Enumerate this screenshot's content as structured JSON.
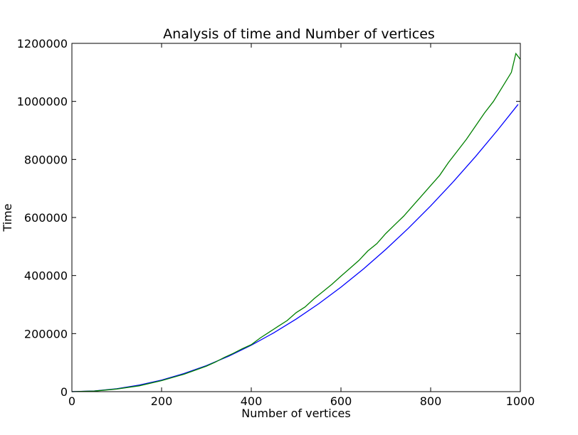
{
  "chart_data": {
    "type": "line",
    "title": "Analysis of time and Number of vertices",
    "xlabel": "Number of vertices",
    "ylabel": "Time",
    "xlim": [
      0,
      1000
    ],
    "ylim": [
      0,
      1200000
    ],
    "grid": false,
    "x_ticks": [
      "0",
      "200",
      "400",
      "600",
      "800",
      "1000"
    ],
    "y_ticks": [
      "0",
      "200000",
      "400000",
      "600000",
      "800000",
      "1000000",
      "1200000"
    ],
    "series": [
      {
        "color": "#0000ff",
        "x": [
          0,
          50,
          100,
          150,
          200,
          250,
          300,
          350,
          400,
          450,
          500,
          550,
          600,
          650,
          700,
          750,
          800,
          850,
          900,
          950,
          995
        ],
        "y": [
          0,
          2500,
          10000,
          22500,
          40000,
          62500,
          90000,
          122500,
          160000,
          202500,
          250000,
          302500,
          360000,
          422500,
          490000,
          562500,
          640000,
          722500,
          810000,
          902500,
          990000
        ]
      },
      {
        "color": "#008000",
        "x": [
          0,
          50,
          100,
          150,
          200,
          250,
          300,
          320,
          340,
          360,
          380,
          400,
          420,
          440,
          460,
          480,
          500,
          520,
          540,
          560,
          580,
          600,
          620,
          640,
          660,
          680,
          700,
          720,
          740,
          760,
          780,
          800,
          820,
          840,
          860,
          880,
          900,
          920,
          940,
          960,
          980,
          990,
          1000
        ],
        "y": [
          0,
          2000,
          9000,
          20000,
          38000,
          60000,
          88000,
          102000,
          118000,
          132000,
          148000,
          162000,
          185000,
          205000,
          225000,
          245000,
          272000,
          292000,
          320000,
          345000,
          370000,
          398000,
          425000,
          452000,
          485000,
          510000,
          545000,
          575000,
          605000,
          640000,
          675000,
          710000,
          745000,
          790000,
          830000,
          870000,
          915000,
          960000,
          1000000,
          1050000,
          1100000,
          1165000,
          1145000
        ]
      }
    ]
  }
}
